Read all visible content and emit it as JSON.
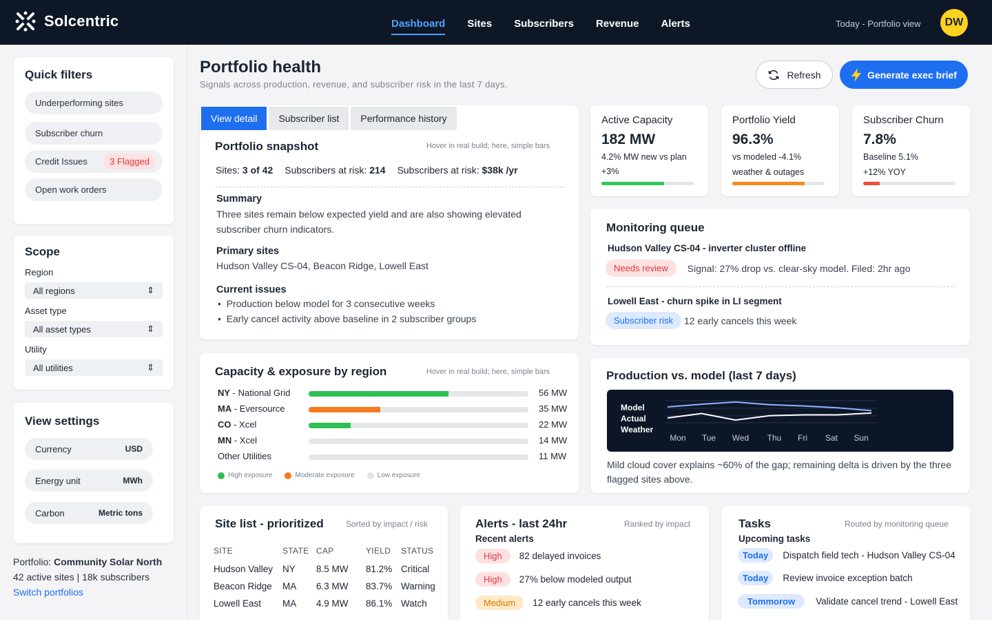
{
  "app": {
    "name": "Solcentric"
  },
  "nav": {
    "items": [
      "Dashboard",
      "Sites",
      "Subscribers",
      "Revenue",
      "Alerts"
    ],
    "active": "Dashboard"
  },
  "header": {
    "context": "Today - Portfolio view",
    "avatar_initials": "DW"
  },
  "quick_filters": {
    "title": "Quick filters",
    "items": [
      {
        "label": "Underperforming sites"
      },
      {
        "label": "Subscriber churn"
      },
      {
        "label": "Credit Issues",
        "badge": "3 Flagged"
      },
      {
        "label": "Open work orders"
      }
    ]
  },
  "scope": {
    "title": "Scope",
    "region_label": "Region",
    "region_value": "All regions",
    "asset_label": "Asset type",
    "asset_value": "All asset types",
    "utility_label": "Utility",
    "utility_value": "All utilities"
  },
  "view_settings": {
    "title": "View settings",
    "items": [
      {
        "label": "Currency",
        "value": "USD"
      },
      {
        "label": "Energy unit",
        "value": "MWh"
      },
      {
        "label": "Carbon",
        "value": "Metric tons"
      }
    ]
  },
  "portfolio_footer": {
    "prefix": "Portfolio: ",
    "name": "Community Solar North",
    "stats": "42 active sites | 18k subscribers",
    "switch_link": "Switch portfolios"
  },
  "page": {
    "title": "Portfolio health",
    "subtitle": "Signals across production, revenue, and subscriber risk in the last 7 days.",
    "refresh_label": "Refresh",
    "generate_label": "Generate exec brief"
  },
  "snapshot": {
    "tabs": [
      "View detail",
      "Subscriber list",
      "Performance history"
    ],
    "title": "Portfolio snapshot",
    "hint": "Hover in real build; here, simple bars",
    "sites_label": "Sites: ",
    "sites_value": "3 of 42",
    "at_risk_label": "Subscribers at risk: ",
    "at_risk_value": "214",
    "at_risk2_label": "Subscribers at risk: ",
    "at_risk2_value": "$38k /yr",
    "summary_title": "Summary",
    "summary_text": "Three sites remain below expected yield and are also showing elevated subscriber churn indicators.",
    "primary_title": "Primary sites",
    "primary_text": "Hudson Valley CS-04, Beacon Ridge, Lowell East",
    "issues_title": "Current issues",
    "issues": [
      "Production below model for 3 consecutive weeks",
      "Early cancel activity above baseline in 2 subscriber groups"
    ]
  },
  "kpis": [
    {
      "title": "Active Capacity",
      "value": "182 MW",
      "line1": "4.2% MW new vs plan",
      "line2": "+3%",
      "progress": 0.68,
      "color": "#34c759"
    },
    {
      "title": "Portfolio Yield",
      "value": "96.3%",
      "line1": "vs modeled -4.1%",
      "line2": "weather & outages",
      "progress": 0.78,
      "color": "#f68b1f"
    },
    {
      "title": "Subscriber Churn",
      "value": "7.8%",
      "line1": "Baseline 5.1%",
      "line2": "+12% YOY",
      "progress": 0.18,
      "color": "#ef4e3a"
    }
  ],
  "monitoring": {
    "title": "Monitoring queue",
    "items": [
      {
        "heading": "Hudson Valley CS-04 - inverter cluster offline",
        "badge": "Needs review",
        "text": "Signal: 27% drop vs. clear-sky model. Filed: 2hr ago"
      },
      {
        "heading": "Lowell East - churn spike in LI segment",
        "badge": "Subscriber risk",
        "text": "12 early cancels this week"
      }
    ]
  },
  "capacity": {
    "title": "Capacity & exposure by region",
    "hint": "Hover in real build; here, simple bars",
    "rows": [
      {
        "code": "NY",
        "name": " - National Grid",
        "value": "56 MW",
        "fill": 0.635,
        "color": "#2fbf52"
      },
      {
        "code": "MA",
        "name": " - Eversource",
        "value": "35 MW",
        "fill": 0.325,
        "color": "#f57a1f"
      },
      {
        "code": "CO",
        "name": " - Xcel",
        "value": "22 MW",
        "fill": 0.19,
        "color": "#2fbf52"
      },
      {
        "code": "MN",
        "name": " - Xcel",
        "value": "14 MW",
        "fill": 0,
        "color": "#e4e6ea"
      },
      {
        "code": "",
        "name": "Other Utilities",
        "value": "11 MW",
        "fill": 0,
        "color": "#e4e6ea"
      }
    ],
    "legend": [
      {
        "label": "High exposure",
        "color": "#2fbf52"
      },
      {
        "label": "Moderate exposure",
        "color": "#f57a1f"
      },
      {
        "label": "Low exposure",
        "color": "#e4e6ea"
      }
    ]
  },
  "production": {
    "title": "Production vs. model (last 7 days)",
    "legend": [
      "Model",
      "Actual",
      "Weather"
    ],
    "note": "Mild cloud cover explains ~60% of the gap; remaining delta is driven by the three flagged sites above."
  },
  "chart_data": {
    "type": "line",
    "categories": [
      "Mon",
      "Tue",
      "Wed",
      "Thu",
      "Fri",
      "Sat",
      "Sun"
    ],
    "series": [
      {
        "name": "Model",
        "values": [
          0.72,
          0.84,
          0.94,
          0.82,
          0.76,
          0.68,
          0.55
        ],
        "color": "#8fb3ff"
      },
      {
        "name": "Actual",
        "values": [
          0.22,
          0.42,
          0.12,
          0.32,
          0.36,
          0.36,
          0.44
        ],
        "color": "#ffffff"
      }
    ],
    "ylim": [
      0,
      1
    ],
    "grid": true
  },
  "site_list": {
    "title": "Site list - prioritized",
    "hint": "Sorted by impact / risk",
    "headers": [
      "SITE",
      "STATE",
      "CAP",
      "YIELD",
      "STATUS"
    ],
    "rows": [
      [
        "Hudson Valley",
        "NY",
        "8.5 MW",
        "81.2%",
        "Critical"
      ],
      [
        "Beacon Ridge",
        "MA",
        "6.3 MW",
        "83.7%",
        "Warning"
      ],
      [
        "Lowell East",
        "MA",
        "4.9 MW",
        "86.1%",
        "Watch"
      ]
    ]
  },
  "alerts": {
    "title": "Alerts - last 24hr",
    "hint": "Ranked by impact",
    "subtitle": "Recent alerts",
    "items": [
      {
        "level": "High",
        "text": "82 delayed invoices"
      },
      {
        "level": "High",
        "text": "27% below modeled output"
      },
      {
        "level": "Medium",
        "text": "12 early cancels this week"
      }
    ]
  },
  "tasks": {
    "title": "Tasks",
    "hint": "Routed by monitoring queue",
    "subtitle": "Upcoming tasks",
    "items": [
      {
        "when": "Today",
        "text": "Dispatch field tech - Hudson Valley CS-04"
      },
      {
        "when": "Today",
        "text": "Review invoice exception batch"
      },
      {
        "when": "Tommorow",
        "text": "Validate cancel trend - Lowell East"
      }
    ]
  }
}
